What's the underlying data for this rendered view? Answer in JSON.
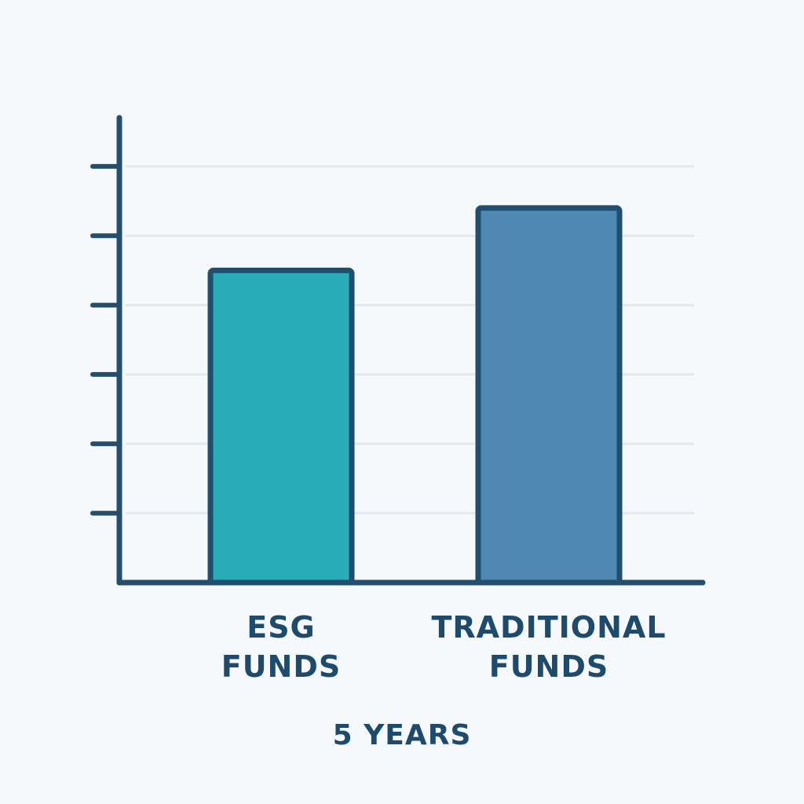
{
  "chart_data": {
    "type": "bar",
    "categories": [
      "ESG FUNDS",
      "TRADITIONAL FUNDS"
    ],
    "values": [
      4.5,
      5.4
    ],
    "colors": [
      "#2aacb8",
      "#4f89b3"
    ],
    "x_label": "5 YEARS",
    "ylim": [
      0,
      6.7
    ],
    "yticks": [
      1,
      2,
      3,
      4,
      5,
      6
    ],
    "grid": true
  }
}
